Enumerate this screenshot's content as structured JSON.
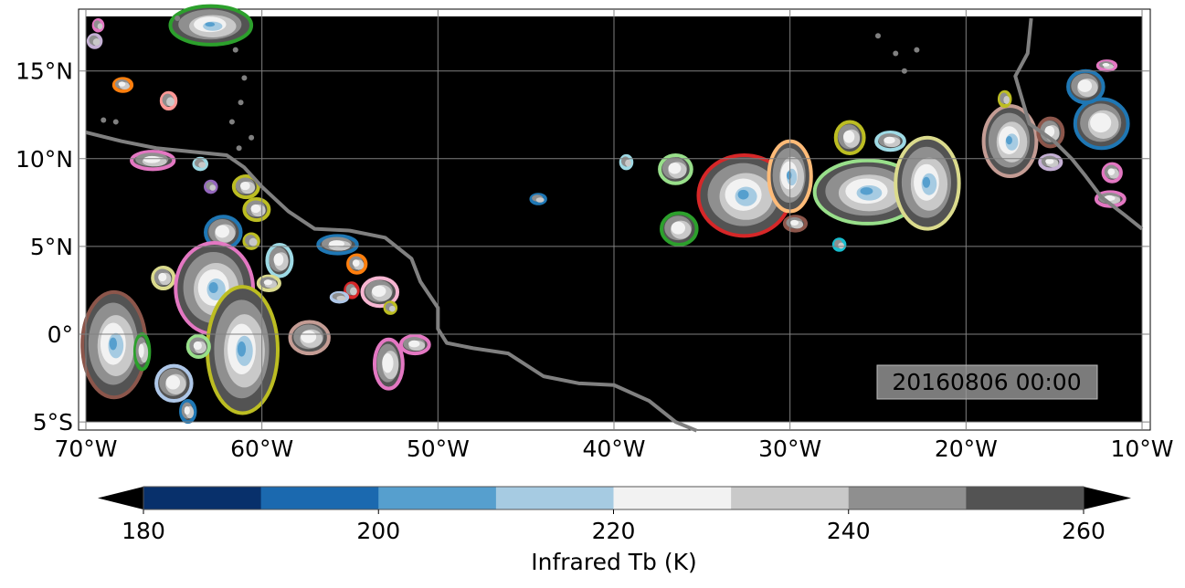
{
  "map": {
    "extent": {
      "lon": [
        -70,
        -10
      ],
      "lat": [
        -5,
        18
      ]
    },
    "background_color": "#000000",
    "coastline_color": "#808080",
    "grid": true,
    "lon_ticks": [
      {
        "value": -70,
        "label": "70°W"
      },
      {
        "value": -60,
        "label": "60°W"
      },
      {
        "value": -50,
        "label": "50°W"
      },
      {
        "value": -40,
        "label": "40°W"
      },
      {
        "value": -30,
        "label": "30°W"
      },
      {
        "value": -20,
        "label": "20°W"
      },
      {
        "value": -10,
        "label": "10°W"
      }
    ],
    "lat_ticks": [
      {
        "value": 15,
        "label": "15°N"
      },
      {
        "value": 10,
        "label": "10°N"
      },
      {
        "value": 5,
        "label": "5°N"
      },
      {
        "value": 0,
        "label": "0°"
      },
      {
        "value": -5,
        "label": "5°S"
      }
    ],
    "timestamp": "20160806 00:00",
    "storms": [
      {
        "lon": -32.6,
        "lat": 7.9,
        "rx": 2.6,
        "ry": 2.3,
        "color": "#d62728"
      },
      {
        "lon": -36.3,
        "lat": 6.0,
        "rx": 1.0,
        "ry": 0.9,
        "color": "#2ca02c"
      },
      {
        "lon": -36.5,
        "lat": 9.4,
        "rx": 0.9,
        "ry": 0.8,
        "color": "#98df8a"
      },
      {
        "lon": -30.0,
        "lat": 9.0,
        "rx": 1.2,
        "ry": 2.0,
        "color": "#ffbb78"
      },
      {
        "lon": -29.7,
        "lat": 6.3,
        "rx": 0.6,
        "ry": 0.4,
        "color": "#8c564b"
      },
      {
        "lon": -25.6,
        "lat": 8.1,
        "rx": 3.0,
        "ry": 1.8,
        "color": "#98df8a"
      },
      {
        "lon": -26.6,
        "lat": 11.2,
        "rx": 0.8,
        "ry": 0.9,
        "color": "#bcbd22"
      },
      {
        "lon": -22.2,
        "lat": 8.6,
        "rx": 1.8,
        "ry": 2.6,
        "color": "#dbdb8d"
      },
      {
        "lon": -24.3,
        "lat": 11.0,
        "rx": 0.8,
        "ry": 0.5,
        "color": "#9edae5"
      },
      {
        "lon": -27.2,
        "lat": 5.1,
        "rx": 0.3,
        "ry": 0.3,
        "color": "#17becf"
      },
      {
        "lon": -17.5,
        "lat": 11.0,
        "rx": 1.5,
        "ry": 2.0,
        "color": "#c49c94"
      },
      {
        "lon": -15.2,
        "lat": 11.5,
        "rx": 0.7,
        "ry": 0.8,
        "color": "#8c564b"
      },
      {
        "lon": -12.3,
        "lat": 12.0,
        "rx": 1.5,
        "ry": 1.4,
        "color": "#1f77b4"
      },
      {
        "lon": -13.2,
        "lat": 14.1,
        "rx": 1.0,
        "ry": 0.9,
        "color": "#1f77b4"
      },
      {
        "lon": -12.0,
        "lat": 15.3,
        "rx": 0.5,
        "ry": 0.25,
        "color": "#e377c2"
      },
      {
        "lon": -11.8,
        "lat": 7.7,
        "rx": 0.8,
        "ry": 0.4,
        "color": "#e377c2"
      },
      {
        "lon": -11.7,
        "lat": 9.2,
        "rx": 0.5,
        "ry": 0.5,
        "color": "#e377c2"
      },
      {
        "lon": -15.2,
        "lat": 9.8,
        "rx": 0.6,
        "ry": 0.4,
        "color": "#c5b0d5"
      },
      {
        "lon": -17.8,
        "lat": 13.4,
        "rx": 0.3,
        "ry": 0.4,
        "color": "#bcbd22"
      },
      {
        "lon": -44.3,
        "lat": 7.7,
        "rx": 0.4,
        "ry": 0.25,
        "color": "#1f77b4"
      },
      {
        "lon": -39.3,
        "lat": 9.8,
        "rx": 0.3,
        "ry": 0.35,
        "color": "#9edae5"
      },
      {
        "lon": -62.9,
        "lat": 17.6,
        "rx": 2.3,
        "ry": 1.1,
        "color": "#2ca02c"
      },
      {
        "lon": -67.9,
        "lat": 14.2,
        "rx": 0.5,
        "ry": 0.35,
        "color": "#ff7f0e"
      },
      {
        "lon": -65.3,
        "lat": 13.3,
        "rx": 0.4,
        "ry": 0.45,
        "color": "#ff9896"
      },
      {
        "lon": -69.5,
        "lat": 16.7,
        "rx": 0.35,
        "ry": 0.35,
        "color": "#c5b0d5"
      },
      {
        "lon": -69.3,
        "lat": 17.6,
        "rx": 0.25,
        "ry": 0.3,
        "color": "#e377c2"
      },
      {
        "lon": -66.2,
        "lat": 9.9,
        "rx": 1.2,
        "ry": 0.5,
        "color": "#e377c2"
      },
      {
        "lon": -63.5,
        "lat": 9.7,
        "rx": 0.35,
        "ry": 0.3,
        "color": "#9edae5"
      },
      {
        "lon": -62.9,
        "lat": 8.4,
        "rx": 0.3,
        "ry": 0.3,
        "color": "#9467bd"
      },
      {
        "lon": -60.9,
        "lat": 8.4,
        "rx": 0.7,
        "ry": 0.6,
        "color": "#bcbd22"
      },
      {
        "lon": -60.3,
        "lat": 7.1,
        "rx": 0.7,
        "ry": 0.6,
        "color": "#bcbd22"
      },
      {
        "lon": -62.2,
        "lat": 5.8,
        "rx": 1.0,
        "ry": 0.9,
        "color": "#1f77b4"
      },
      {
        "lon": -60.6,
        "lat": 5.3,
        "rx": 0.4,
        "ry": 0.4,
        "color": "#bcbd22"
      },
      {
        "lon": -59.0,
        "lat": 4.2,
        "rx": 0.7,
        "ry": 0.9,
        "color": "#9edae5"
      },
      {
        "lon": -55.7,
        "lat": 5.1,
        "rx": 1.1,
        "ry": 0.5,
        "color": "#1f77b4"
      },
      {
        "lon": -54.6,
        "lat": 4.0,
        "rx": 0.5,
        "ry": 0.5,
        "color": "#ff7f0e"
      },
      {
        "lon": -65.6,
        "lat": 3.2,
        "rx": 0.6,
        "ry": 0.6,
        "color": "#dbdb8d"
      },
      {
        "lon": -62.7,
        "lat": 2.6,
        "rx": 2.2,
        "ry": 2.6,
        "color": "#e377c2"
      },
      {
        "lon": -61.1,
        "lat": -0.9,
        "rx": 2.0,
        "ry": 3.6,
        "color": "#bcbd22"
      },
      {
        "lon": -63.6,
        "lat": -0.7,
        "rx": 0.6,
        "ry": 0.6,
        "color": "#98df8a"
      },
      {
        "lon": -68.4,
        "lat": -0.6,
        "rx": 1.8,
        "ry": 3.0,
        "color": "#8c564b"
      },
      {
        "lon": -66.8,
        "lat": -1.0,
        "rx": 0.4,
        "ry": 1.0,
        "color": "#2ca02c"
      },
      {
        "lon": -65.0,
        "lat": -2.8,
        "rx": 1.0,
        "ry": 1.0,
        "color": "#aec7e8"
      },
      {
        "lon": -64.2,
        "lat": -4.4,
        "rx": 0.4,
        "ry": 0.6,
        "color": "#1f77b4"
      },
      {
        "lon": -57.3,
        "lat": -0.2,
        "rx": 1.1,
        "ry": 0.9,
        "color": "#c49c94"
      },
      {
        "lon": -53.3,
        "lat": 2.4,
        "rx": 1.0,
        "ry": 0.8,
        "color": "#f7b6d2"
      },
      {
        "lon": -54.9,
        "lat": 2.5,
        "rx": 0.35,
        "ry": 0.4,
        "color": "#d62728"
      },
      {
        "lon": -55.6,
        "lat": 2.1,
        "rx": 0.45,
        "ry": 0.25,
        "color": "#aec7e8"
      },
      {
        "lon": -52.7,
        "lat": 1.5,
        "rx": 0.3,
        "ry": 0.3,
        "color": "#bcbd22"
      },
      {
        "lon": -52.8,
        "lat": -1.7,
        "rx": 0.8,
        "ry": 1.4,
        "color": "#e377c2"
      },
      {
        "lon": -51.3,
        "lat": -0.6,
        "rx": 0.8,
        "ry": 0.5,
        "color": "#e377c2"
      },
      {
        "lon": -59.6,
        "lat": 2.9,
        "rx": 0.6,
        "ry": 0.4,
        "color": "#dbdb8d"
      }
    ]
  },
  "colorbar": {
    "label": "Infrared Tb (K)",
    "boundaries": [
      180,
      190,
      200,
      210,
      220,
      230,
      240,
      250,
      260
    ],
    "colors": [
      "#08306b",
      "#1b69af",
      "#569fce",
      "#a6cbe2",
      "#f2f2f2",
      "#c9c9c9",
      "#8f8f8f",
      "#535353"
    ],
    "extend_color": "#000000",
    "ticks": [
      {
        "value": 180,
        "label": "180"
      },
      {
        "value": 200,
        "label": "200"
      },
      {
        "value": 220,
        "label": "220"
      },
      {
        "value": 240,
        "label": "240"
      },
      {
        "value": 260,
        "label": "260"
      }
    ]
  }
}
